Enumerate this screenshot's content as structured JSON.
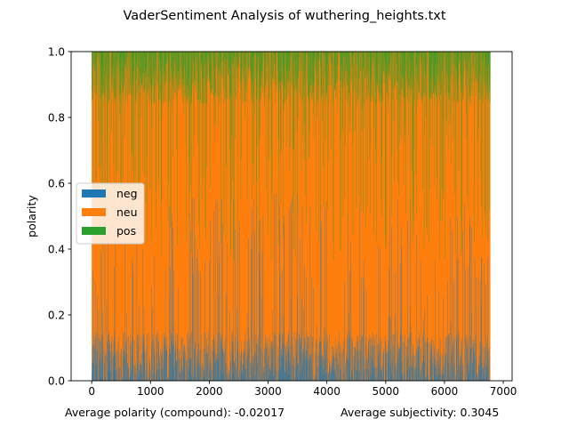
{
  "chart_data": {
    "type": "bar",
    "stacked": true,
    "title": "VaderSentiment Analysis of wuthering_heights.txt",
    "xlabel": "",
    "ylabel": "polarity",
    "xlim": [
      -350,
      7150
    ],
    "ylim": [
      0,
      1
    ],
    "x_ticks": [
      0,
      1000,
      2000,
      3000,
      4000,
      5000,
      6000,
      7000
    ],
    "y_ticks": [
      0.0,
      0.2,
      0.4,
      0.6,
      0.8,
      1.0
    ],
    "n_sentences": 6780,
    "legend_position": "center-left",
    "series": [
      {
        "name": "neg",
        "color": "#1f77b4"
      },
      {
        "name": "neu",
        "color": "#ff7f0e"
      },
      {
        "name": "pos",
        "color": "#2ca02c"
      }
    ],
    "footer": {
      "avg_polarity": "Average polarity (compound): -0.02017",
      "avg_subjectivity": "Average subjectivity: 0.3045"
    }
  }
}
